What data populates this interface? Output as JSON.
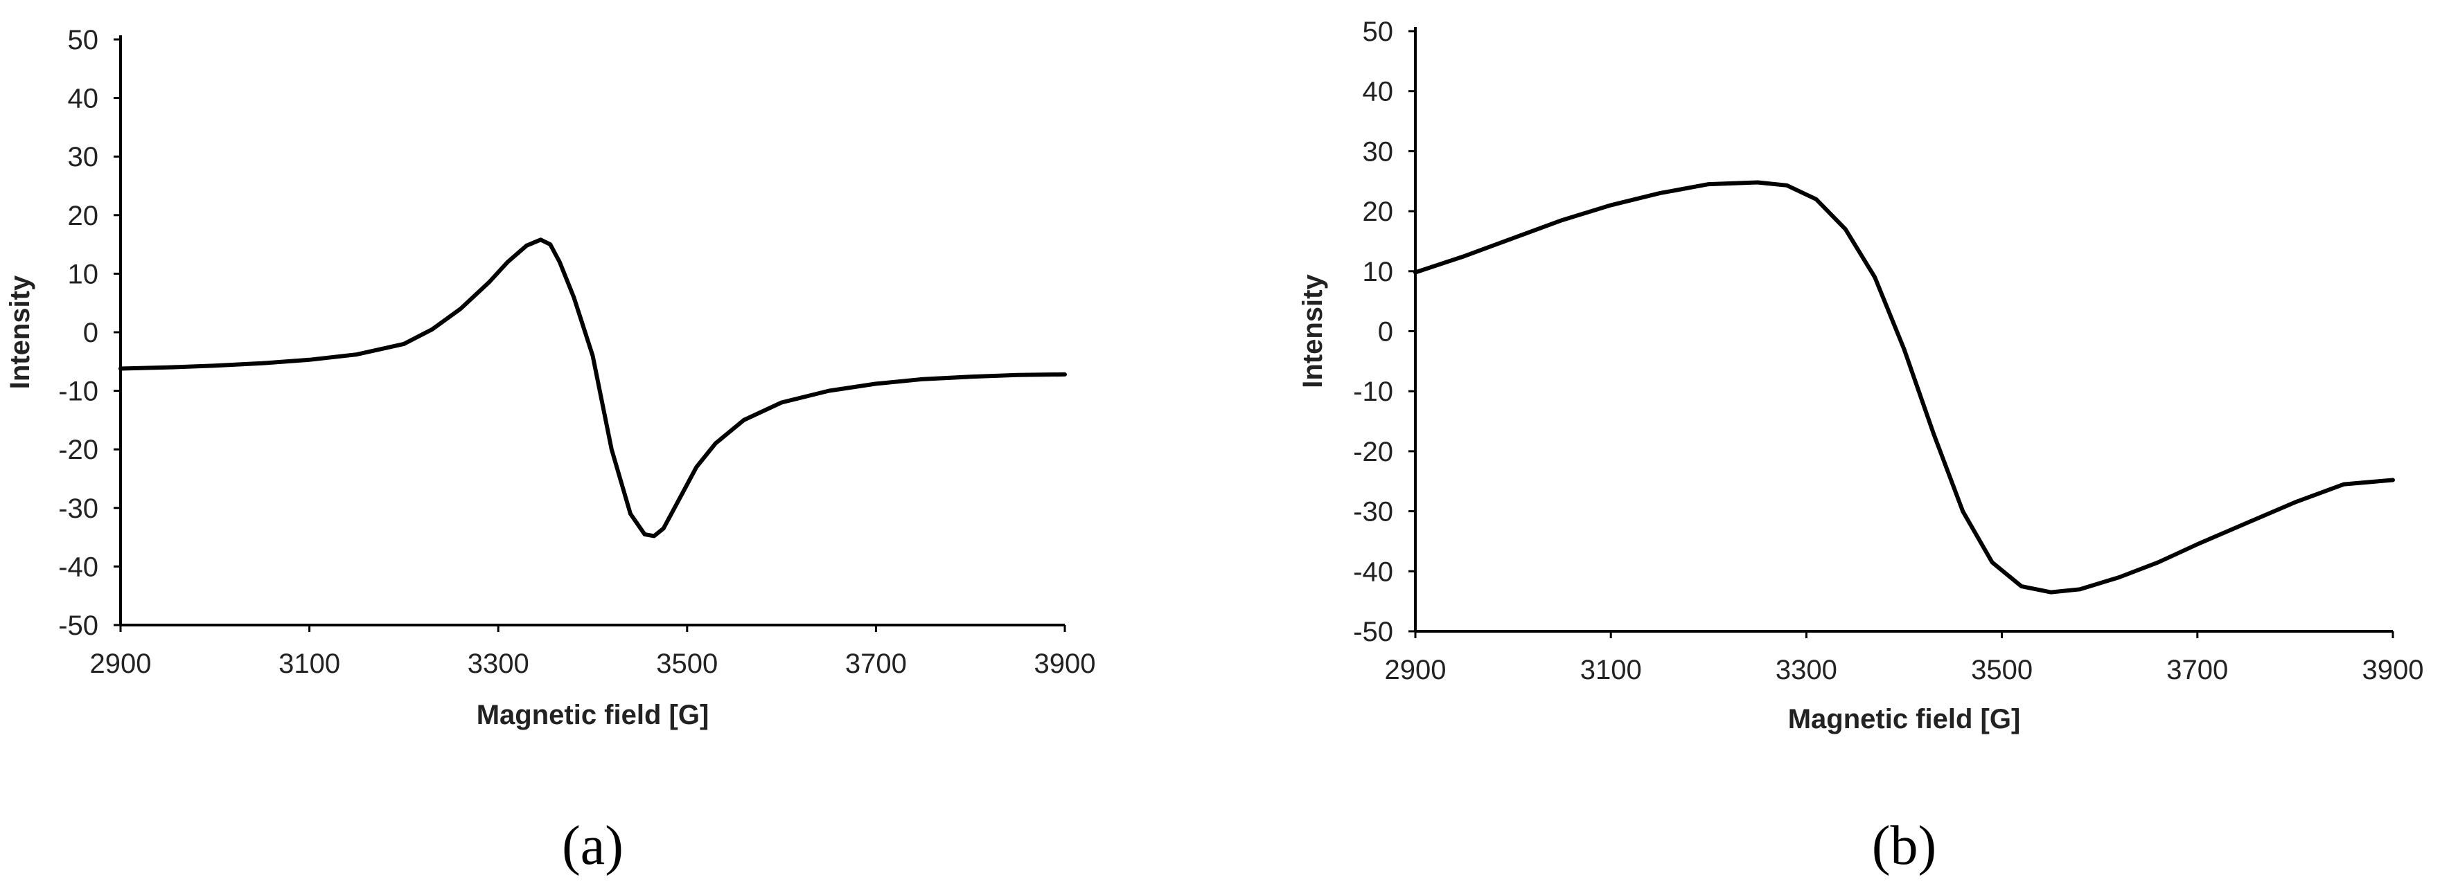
{
  "chart_data": [
    {
      "type": "line",
      "panel_label": "(a)",
      "xlabel": "Magnetic field [G]",
      "ylabel": "Intensity",
      "xlim": [
        2900,
        3900
      ],
      "ylim": [
        -50,
        50
      ],
      "xticks": [
        2900,
        3100,
        3300,
        3500,
        3700,
        3900
      ],
      "yticks": [
        -50,
        -40,
        -30,
        -20,
        -10,
        0,
        10,
        20,
        30,
        40,
        50
      ],
      "grid": false,
      "series": [
        {
          "x": [
            2900,
            2950,
            3000,
            3050,
            3100,
            3150,
            3200,
            3230,
            3260,
            3290,
            3310,
            3330,
            3345,
            3355,
            3365,
            3380,
            3400,
            3420,
            3440,
            3455,
            3465,
            3475,
            3490,
            3510,
            3530,
            3560,
            3600,
            3650,
            3700,
            3750,
            3800,
            3850,
            3900
          ],
          "y": [
            -6.2,
            -6,
            -5.7,
            -5.3,
            -4.7,
            -3.8,
            -2,
            0.5,
            4,
            8.5,
            12,
            14.8,
            15.8,
            15,
            12,
            6,
            -4,
            -20,
            -31,
            -34.5,
            -34.8,
            -33.5,
            -29,
            -23,
            -19,
            -15,
            -12,
            -10,
            -8.8,
            -8,
            -7.6,
            -7.3,
            -7.2
          ]
        }
      ]
    },
    {
      "type": "line",
      "panel_label": "(b)",
      "xlabel": "Magnetic field [G]",
      "ylabel": "Intensity",
      "xlim": [
        2900,
        3900
      ],
      "ylim": [
        -50,
        50
      ],
      "xticks": [
        2900,
        3100,
        3300,
        3500,
        3700,
        3900
      ],
      "yticks": [
        -50,
        -40,
        -30,
        -20,
        -10,
        0,
        10,
        20,
        30,
        40,
        50
      ],
      "grid": false,
      "series": [
        {
          "x": [
            2900,
            2950,
            3000,
            3050,
            3100,
            3150,
            3200,
            3250,
            3280,
            3310,
            3340,
            3370,
            3400,
            3430,
            3460,
            3490,
            3520,
            3550,
            3580,
            3620,
            3660,
            3700,
            3750,
            3800,
            3850,
            3900
          ],
          "y": [
            9.8,
            12.5,
            15.5,
            18.5,
            21,
            23,
            24.5,
            24.8,
            24.3,
            22,
            17,
            9,
            -3,
            -17,
            -30,
            -38.5,
            -42.5,
            -43.5,
            -43,
            -41,
            -38.5,
            -35.5,
            -32,
            -28.5,
            -25.5,
            -24.8
          ]
        }
      ]
    }
  ]
}
